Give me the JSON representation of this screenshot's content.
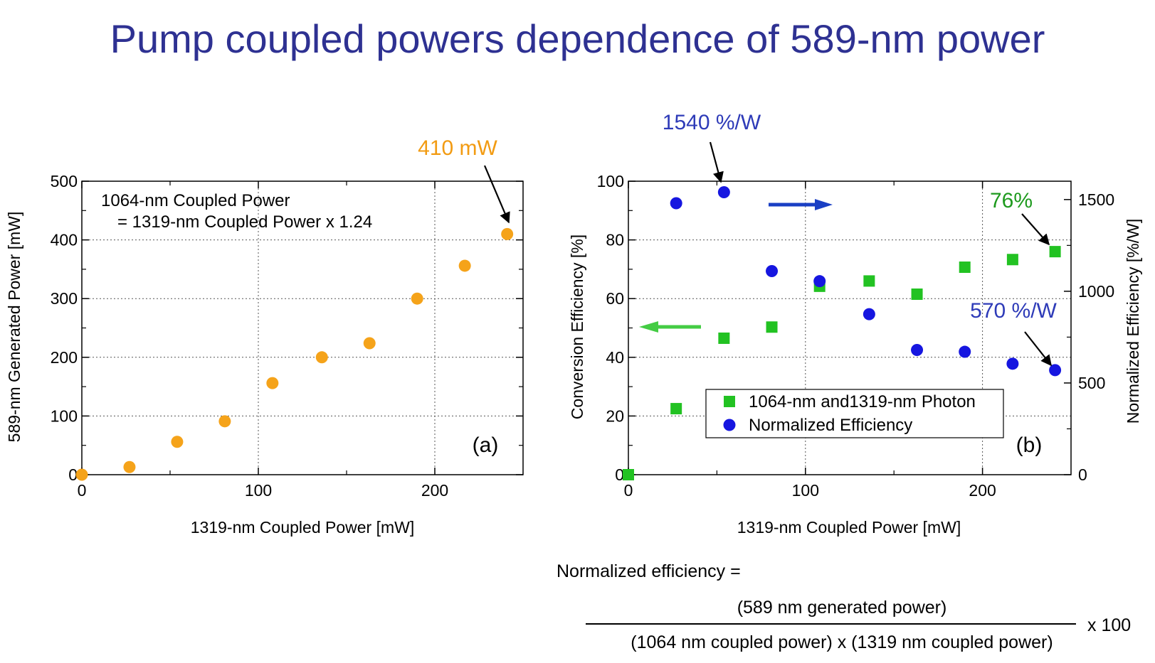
{
  "title": "Pump coupled powers dependence of 589-nm power",
  "colors": {
    "title": "#2e3192",
    "orange": "#f5a31a",
    "orange_text": "#f29b12",
    "green": "#22c222",
    "green_text": "#1e9a1e",
    "blue": "#1616e0",
    "blue_text": "#2e3bb8",
    "arrow_blue": "#1a3fc4",
    "arrow_green": "#44cc44",
    "grid": "#555555"
  },
  "chart_data": [
    {
      "type": "scatter",
      "panel": "(a)",
      "xlabel": "1319-nm Coupled Power [mW]",
      "ylabel": "589-nm Generated Power [mW]",
      "xlim": [
        0,
        250
      ],
      "ylim": [
        0,
        500
      ],
      "xticks": [
        0,
        100,
        200
      ],
      "yticks": [
        0,
        100,
        200,
        300,
        400,
        500
      ],
      "grid": true,
      "note_line1": "1064-nm Coupled Power",
      "note_line2": "= 1319-nm Coupled Power x 1.24",
      "annotation": "410 mW",
      "points": [
        [
          0,
          0
        ],
        [
          27,
          13
        ],
        [
          54,
          56
        ],
        [
          81,
          91
        ],
        [
          108,
          156
        ],
        [
          136,
          200
        ],
        [
          163,
          224
        ],
        [
          190,
          300
        ],
        [
          217,
          356
        ],
        [
          241,
          410
        ]
      ]
    },
    {
      "type": "scatter",
      "panel": "(b)",
      "xlabel": "1319-nm Coupled Power [mW]",
      "ylabel_left": "Conversion Efficiency [%]",
      "ylabel_right": "Normalized Efficiency [%/W]",
      "xlim": [
        0,
        250
      ],
      "ylim_left": [
        0,
        100
      ],
      "ylim_right": [
        0,
        1600
      ],
      "xticks": [
        0,
        100,
        200
      ],
      "yticks_left": [
        0,
        20,
        40,
        60,
        80,
        100
      ],
      "yticks_right": [
        0,
        500,
        1000,
        1500
      ],
      "grid": true,
      "legend_position": "bottom-center",
      "annotations": {
        "top_blue": "1540 %/W",
        "right_blue": "570 %/W",
        "green": "76%"
      },
      "series": [
        {
          "name": "1064-nm and1319-nm Photon",
          "axis": "left",
          "marker": "square",
          "points": [
            [
              0,
              0
            ],
            [
              27,
              22.5
            ],
            [
              54,
              46.5
            ],
            [
              81,
              50.3
            ],
            [
              108,
              64.2
            ],
            [
              136,
              66.0
            ],
            [
              163,
              61.5
            ],
            [
              190,
              70.7
            ],
            [
              217,
              73.3
            ],
            [
              241,
              76.0
            ]
          ]
        },
        {
          "name": "Normalized Efficiency",
          "axis": "right",
          "marker": "circle",
          "points": [
            [
              27,
              1480
            ],
            [
              54,
              1540
            ],
            [
              81,
              1110
            ],
            [
              108,
              1055
            ],
            [
              136,
              875
            ],
            [
              163,
              680
            ],
            [
              190,
              670
            ],
            [
              217,
              605
            ],
            [
              241,
              570
            ]
          ]
        }
      ]
    }
  ],
  "formula": {
    "lhs": "Normalized efficiency =",
    "numerator": "(589 nm generated power)",
    "denominator": "(1064 nm coupled power) x (1319 nm coupled power)",
    "factor": "x 100"
  }
}
